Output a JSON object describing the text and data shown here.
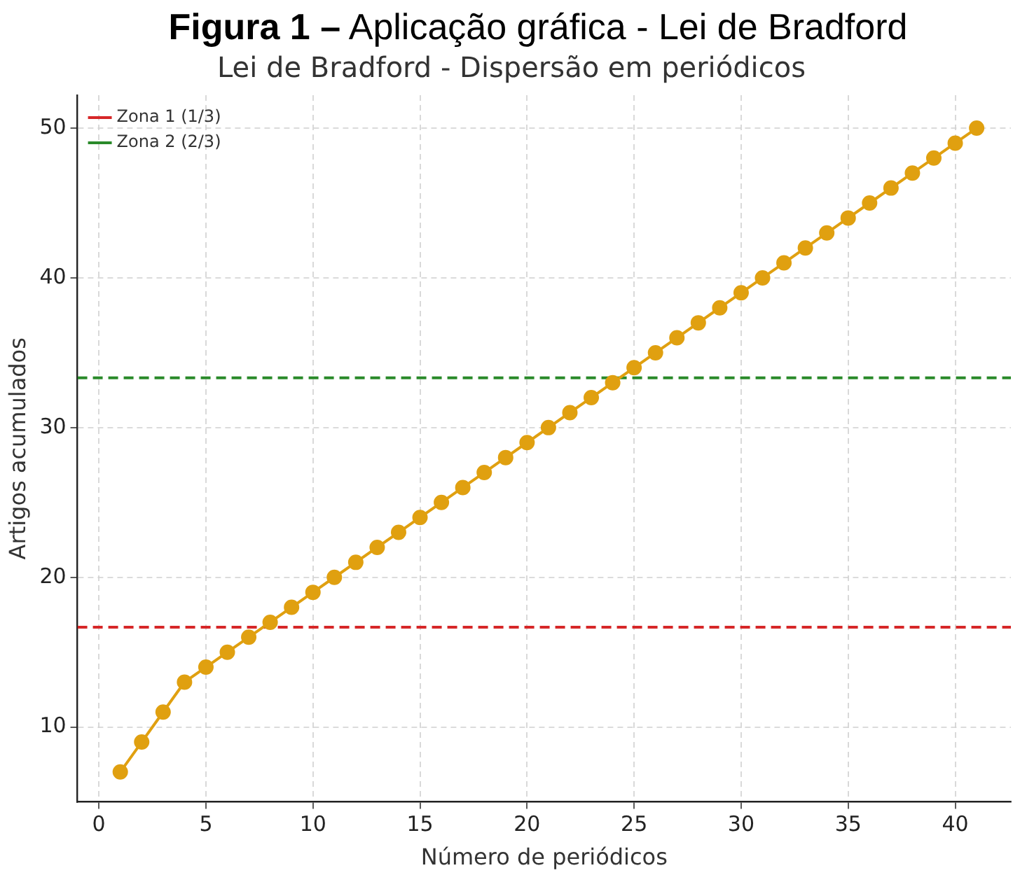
{
  "chart_data": {
    "type": "line",
    "title": "Figura 1 – Aplicação gráfica - Lei de Bradford",
    "subtitle": "Lei de Bradford - Dispersão em periódicos",
    "xlabel": "Número de periódicos",
    "ylabel": "Artigos acumulados",
    "x": [
      1,
      2,
      3,
      4,
      5,
      6,
      7,
      8,
      9,
      10,
      11,
      12,
      13,
      14,
      15,
      16,
      17,
      18,
      19,
      20,
      21,
      22,
      23,
      24,
      25,
      26,
      27,
      28,
      29,
      30,
      31,
      32,
      33,
      34,
      35,
      36,
      37,
      38,
      39,
      40,
      41
    ],
    "series": [
      {
        "color": "#e0a010",
        "values": [
          7,
          9,
          11,
          13,
          14,
          15,
          16,
          17,
          18,
          19,
          20,
          21,
          22,
          23,
          24,
          25,
          26,
          27,
          28,
          29,
          30,
          31,
          32,
          33,
          34,
          35,
          36,
          37,
          38,
          39,
          40,
          41,
          42,
          43,
          44,
          45,
          46,
          47,
          48,
          49,
          50
        ]
      }
    ],
    "ref_lines": [
      {
        "axis": "y",
        "value": 16.67,
        "label": "Zona 1 (1/3)",
        "color": "#d62728",
        "line_style": "dashed"
      },
      {
        "axis": "y",
        "value": 33.33,
        "label": "Zona 2 (2/3)",
        "color": "#2a8a2a",
        "line_style": "dashed"
      }
    ],
    "xlim": [
      -1,
      42.6
    ],
    "ylim": [
      5,
      52.2
    ],
    "xticks": [
      0,
      5,
      10,
      15,
      20,
      25,
      30,
      35,
      40
    ],
    "yticks": [
      10,
      20,
      30,
      40,
      50
    ],
    "grid": true,
    "legend": "top left",
    "marker": "circle",
    "line_style": "solid"
  }
}
